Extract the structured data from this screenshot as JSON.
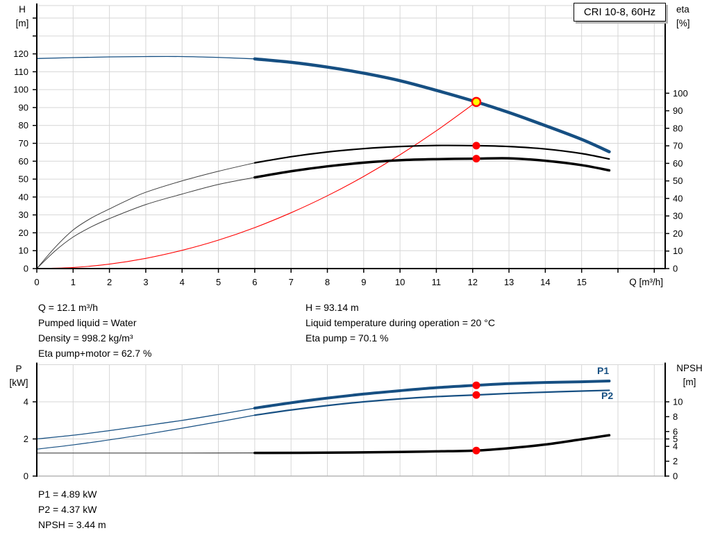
{
  "title_box": "CRI 10-8, 60Hz",
  "colors": {
    "grid": "#d6d6d6",
    "axis": "#000000",
    "light_axis": "#a8a8a8",
    "pump_blue": "#164f82",
    "system_red": "#ff0000",
    "eta_black": "#000000",
    "thin_gray": "#3d3d3d",
    "point_red": "#ff0000",
    "duty_fill": "#ffff00",
    "duty_stroke": "#ff0000"
  },
  "info_top": {
    "left": [
      "Q = 12.1 m³/h",
      "Pumped liquid = Water",
      "Density = 998.2 kg/m³",
      "Eta pump+motor = 62.7 %"
    ],
    "right": [
      "H = 93.14 m",
      "Liquid temperature during operation = 20 °C",
      "Eta pump = 70.1 %"
    ]
  },
  "info_bottom": [
    "P1 = 4.89 kW",
    "P2 = 4.37 kW",
    "NPSH = 3.44 m"
  ],
  "chart_data": [
    {
      "type": "line",
      "name": "qh-eta-chart",
      "title": "CRI 10-8, 60Hz",
      "x_axis": {
        "label": "Q [m³/h]",
        "range": [
          0,
          17.3
        ],
        "tick_values": [
          0,
          1,
          2,
          3,
          4,
          5,
          6,
          7,
          8,
          9,
          10,
          11,
          12,
          13,
          14,
          15,
          16,
          17
        ],
        "tick_labels": [
          "0",
          "1",
          "2",
          "3",
          "4",
          "5",
          "6",
          "7",
          "8",
          "9",
          "10",
          "11",
          "12",
          "13",
          "14",
          "15",
          "",
          ""
        ],
        "grid": [
          1,
          2,
          3,
          4,
          5,
          6,
          7,
          8,
          9,
          10,
          11,
          12,
          13,
          14,
          15,
          16,
          17
        ],
        "show_ticks": true
      },
      "y_left": {
        "label": "H [m]",
        "symbol": "H",
        "unit": "[m]",
        "range": [
          0,
          147
        ],
        "tick_values": [
          0,
          10,
          20,
          30,
          40,
          50,
          60,
          70,
          80,
          90,
          100,
          110,
          120,
          130,
          140
        ],
        "tick_labels": [
          "0",
          "10",
          "20",
          "30",
          "40",
          "50",
          "60",
          "70",
          "80",
          "90",
          "100",
          "110",
          "120",
          "",
          ""
        ],
        "grid": [
          10,
          20,
          30,
          40,
          50,
          60,
          70,
          80,
          90,
          100,
          110,
          120,
          130,
          140
        ]
      },
      "y_right": {
        "label": "eta [%]",
        "symbol": "eta",
        "unit": "[%]",
        "range": [
          0,
          150
        ],
        "tick_values": [
          0,
          10,
          20,
          30,
          40,
          50,
          60,
          70,
          80,
          90,
          100
        ],
        "tick_labels": [
          "0",
          "10",
          "20",
          "30",
          "40",
          "50",
          "60",
          "70",
          "80",
          "90",
          "100"
        ]
      },
      "series": [
        {
          "id": "h-curve-thin",
          "name": "H pump curve (below duty range)",
          "axis": "left",
          "color": "#164f82",
          "width": 1.3,
          "points": [
            [
              0,
              117.4
            ],
            [
              1,
              117.9
            ],
            [
              2,
              118.3
            ],
            [
              3,
              118.5
            ],
            [
              4,
              118.5
            ],
            [
              5,
              118.0
            ],
            [
              6,
              117.2
            ]
          ]
        },
        {
          "id": "h-curve",
          "name": "H pump curve CRI 10-8",
          "axis": "left",
          "color": "#164f82",
          "width": 4.5,
          "points": [
            [
              6,
              117.2
            ],
            [
              7,
              115.3
            ],
            [
              8,
              112.6
            ],
            [
              9,
              109.2
            ],
            [
              10,
              105.0
            ],
            [
              11,
              99.6
            ],
            [
              12.1,
              93.14
            ],
            [
              13,
              87.2
            ],
            [
              14,
              79.9
            ],
            [
              15,
              72.2
            ],
            [
              15.76,
              65.3
            ]
          ]
        },
        {
          "id": "system-curve",
          "name": "system curve",
          "axis": "left",
          "color": "#ff0000",
          "width": 1.1,
          "points": [
            [
              0,
              0
            ],
            [
              1,
              0.6
            ],
            [
              2,
              2.5
            ],
            [
              3,
              5.7
            ],
            [
              4,
              10.2
            ],
            [
              5,
              15.9
            ],
            [
              6,
              22.9
            ],
            [
              7,
              31.2
            ],
            [
              8,
              40.7
            ],
            [
              9,
              51.5
            ],
            [
              10,
              63.6
            ],
            [
              11,
              77.0
            ],
            [
              12.1,
              93.14
            ]
          ]
        },
        {
          "id": "eta-pump-thin",
          "name": "eta pump (below duty range)",
          "axis": "right",
          "color": "#3d3d3d",
          "width": 1,
          "points": [
            [
              0,
              0
            ],
            [
              0.5,
              12
            ],
            [
              1,
              22
            ],
            [
              1.5,
              28.8
            ],
            [
              2,
              34
            ],
            [
              2.5,
              39
            ],
            [
              3,
              43.5
            ],
            [
              4,
              50
            ],
            [
              5,
              55.5
            ],
            [
              6,
              60.3
            ]
          ]
        },
        {
          "id": "eta-pump",
          "name": "eta pump",
          "axis": "right",
          "color": "#000000",
          "width": 2.2,
          "points": [
            [
              6,
              60.3
            ],
            [
              7,
              63.8
            ],
            [
              8,
              66.5
            ],
            [
              9,
              68.4
            ],
            [
              10,
              69.6
            ],
            [
              11,
              70.2
            ],
            [
              12.1,
              70.1
            ],
            [
              13,
              69.6
            ],
            [
              14,
              68.2
            ],
            [
              15,
              65.6
            ],
            [
              15.76,
              62.5
            ]
          ]
        },
        {
          "id": "eta-pump-motor-thin",
          "name": "eta pump+motor (below duty range)",
          "axis": "right",
          "color": "#3d3d3d",
          "width": 1,
          "points": [
            [
              0,
              0
            ],
            [
              0.5,
              10
            ],
            [
              1,
              18
            ],
            [
              1.5,
              23.8
            ],
            [
              2,
              28.5
            ],
            [
              3,
              36.5
            ],
            [
              4,
              42.5
            ],
            [
              5,
              48
            ],
            [
              6,
              52
            ]
          ]
        },
        {
          "id": "eta-pump-motor",
          "name": "eta pump+motor",
          "axis": "right",
          "color": "#000000",
          "width": 3.5,
          "points": [
            [
              6,
              52
            ],
            [
              7,
              55.5
            ],
            [
              8,
              58.3
            ],
            [
              9,
              60.4
            ],
            [
              10,
              61.8
            ],
            [
              11,
              62.4
            ],
            [
              12.1,
              62.7
            ],
            [
              13,
              62.9
            ],
            [
              14,
              61.5
            ],
            [
              15,
              59.0
            ],
            [
              15.76,
              56.0
            ]
          ]
        }
      ],
      "markers": [
        {
          "id": "duty-point",
          "x": 12.1,
          "y": 93.14,
          "axis": "left",
          "style": "duty"
        },
        {
          "id": "eta-pump-point",
          "x": 12.1,
          "y": 70.1,
          "axis": "right",
          "style": "dot"
        },
        {
          "id": "eta-pump-motor-point",
          "x": 12.1,
          "y": 62.7,
          "axis": "right",
          "style": "dot"
        }
      ]
    },
    {
      "type": "line",
      "name": "power-npsh-chart",
      "x_axis": {
        "label": "",
        "range": [
          0,
          17.3
        ],
        "tick_values": [],
        "tick_labels": [],
        "grid": [
          1,
          2,
          3,
          4,
          5,
          6,
          7,
          8,
          9,
          10,
          11,
          12,
          13,
          14,
          15,
          16,
          17
        ],
        "show_ticks": false
      },
      "y_left": {
        "label": "P [kW]",
        "symbol": "P",
        "unit": "[kW]",
        "range": [
          0,
          6
        ],
        "tick_values": [
          0,
          2,
          4
        ],
        "tick_labels": [
          "0",
          "2",
          "4"
        ],
        "grid": [
          2,
          4
        ]
      },
      "y_right": {
        "label": "NPSH [m]",
        "symbol": "NPSH",
        "unit": "[m]",
        "range": [
          0,
          15
        ],
        "tick_values": [
          0,
          2,
          4,
          5,
          6,
          8,
          10
        ],
        "tick_labels": [
          "0",
          "2",
          "4",
          "5",
          "6",
          "8",
          "10"
        ]
      },
      "bottom_axis": "light",
      "annotations": {
        "p1": "P1",
        "p2": "P2"
      },
      "series": [
        {
          "id": "p1-thin",
          "name": "P1 (below duty range)",
          "axis": "left",
          "color": "#164f82",
          "width": 1.3,
          "points": [
            [
              0,
              2.0
            ],
            [
              1,
              2.2
            ],
            [
              2,
              2.45
            ],
            [
              3,
              2.72
            ],
            [
              4,
              3.0
            ],
            [
              5,
              3.32
            ],
            [
              6,
              3.66
            ]
          ]
        },
        {
          "id": "p1",
          "name": "P1 power input",
          "axis": "left",
          "color": "#164f82",
          "width": 4,
          "points": [
            [
              6,
              3.66
            ],
            [
              7,
              3.95
            ],
            [
              8,
              4.2
            ],
            [
              9,
              4.42
            ],
            [
              10,
              4.6
            ],
            [
              11,
              4.76
            ],
            [
              12.1,
              4.89
            ],
            [
              13,
              4.98
            ],
            [
              14,
              5.04
            ],
            [
              15,
              5.08
            ],
            [
              15.76,
              5.12
            ]
          ]
        },
        {
          "id": "p2-thin",
          "name": "P2 (below duty range)",
          "axis": "left",
          "color": "#164f82",
          "width": 1.2,
          "points": [
            [
              0,
              1.45
            ],
            [
              1,
              1.68
            ],
            [
              2,
              1.95
            ],
            [
              3,
              2.25
            ],
            [
              4,
              2.58
            ],
            [
              5,
              2.92
            ],
            [
              6,
              3.28
            ]
          ]
        },
        {
          "id": "p2",
          "name": "P2 shaft power",
          "axis": "left",
          "color": "#164f82",
          "width": 2.2,
          "points": [
            [
              6,
              3.28
            ],
            [
              7,
              3.56
            ],
            [
              8,
              3.8
            ],
            [
              9,
              4.0
            ],
            [
              10,
              4.16
            ],
            [
              11,
              4.28
            ],
            [
              12.1,
              4.37
            ],
            [
              13,
              4.45
            ],
            [
              14,
              4.52
            ],
            [
              15,
              4.58
            ],
            [
              15.76,
              4.62
            ]
          ]
        },
        {
          "id": "npsh-thin",
          "name": "NPSH (below duty range)",
          "axis": "right",
          "color": "#444444",
          "width": 1.2,
          "points": [
            [
              0,
              3.1
            ],
            [
              2,
              3.1
            ],
            [
              4,
              3.1
            ],
            [
              6,
              3.12
            ]
          ]
        },
        {
          "id": "npsh",
          "name": "NPSH",
          "axis": "right",
          "color": "#000000",
          "width": 3.5,
          "points": [
            [
              6,
              3.12
            ],
            [
              8,
              3.15
            ],
            [
              10,
              3.25
            ],
            [
              11,
              3.33
            ],
            [
              12.1,
              3.44
            ],
            [
              13,
              3.75
            ],
            [
              14,
              4.25
            ],
            [
              15,
              4.95
            ],
            [
              15.76,
              5.5
            ]
          ]
        }
      ],
      "markers": [
        {
          "id": "p1-point",
          "x": 12.1,
          "y": 4.89,
          "axis": "left",
          "style": "dot"
        },
        {
          "id": "p2-point",
          "x": 12.1,
          "y": 4.37,
          "axis": "left",
          "style": "dot"
        },
        {
          "id": "npsh-point",
          "x": 12.1,
          "y": 3.44,
          "axis": "right",
          "style": "dot"
        }
      ]
    }
  ]
}
